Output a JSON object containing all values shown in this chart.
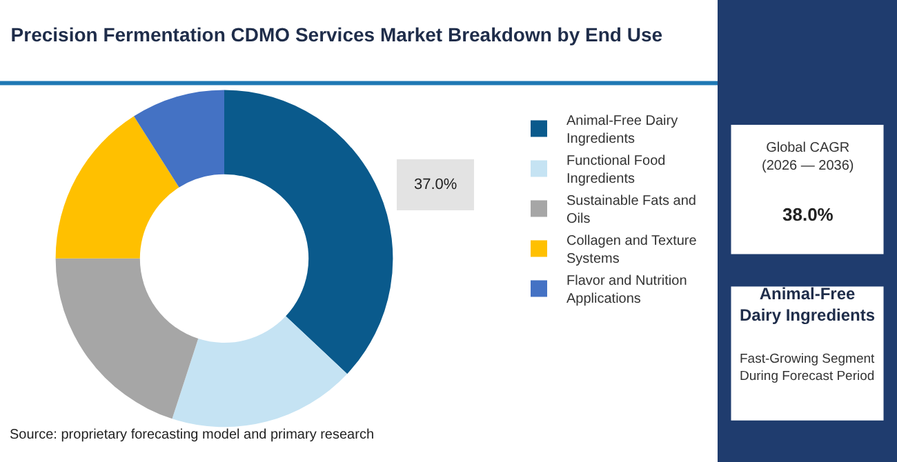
{
  "chart_data": {
    "type": "donut",
    "title": "Precision Fermentation CDMO Services Market Breakdown by End Use",
    "categories": [
      "Animal-Free Dairy Ingredients",
      "Functional Food Ingredients",
      "Sustainable Fats and Oils",
      "Collagen and Texture Systems",
      "Flavor and Nutrition Applications"
    ],
    "values": [
      37,
      18,
      20,
      16,
      9
    ],
    "colors": [
      "#0a5a8c",
      "#c5e3f3",
      "#a6a6a6",
      "#ffc000",
      "#4472c4"
    ],
    "value_labels": [
      "37.0%",
      null,
      null,
      null,
      null
    ],
    "legend": "right",
    "annotations": [
      "Global CAGR\n(2026 — 2036)",
      "38.0%",
      "Animal-Free\nDairy Ingredients",
      "Fast-Growing Segment\nDuring Forecast Period",
      "Source: proprietary forecasting model and primary research"
    ]
  }
}
